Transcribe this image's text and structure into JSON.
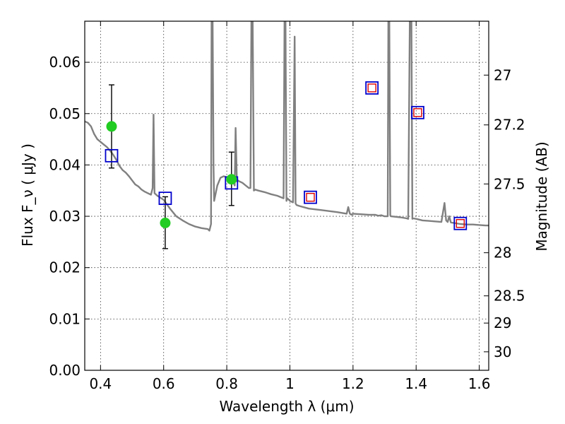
{
  "chart_data": {
    "type": "scatter",
    "xlabel": "Wavelength  λ (μm)",
    "ylabel": "Flux  F_ν  ( μJy )",
    "y2label": "Magnitude (AB)",
    "xlim": [
      0.35,
      1.63
    ],
    "ylim": [
      0.0,
      0.068
    ],
    "grid": true,
    "x_ticks": [
      0.4,
      0.6,
      0.8,
      1.0,
      1.2,
      1.4,
      1.6
    ],
    "x_tick_labels": [
      "0.4",
      "0.6",
      "0.8",
      "1",
      "1.2",
      "1.4",
      "1.6"
    ],
    "y_ticks": [
      0.0,
      0.01,
      0.02,
      0.03,
      0.04,
      0.05,
      0.06
    ],
    "y_tick_labels": [
      "0.00",
      "0.01",
      "0.02",
      "0.03",
      "0.04",
      "0.05",
      "0.06"
    ],
    "y2_ticks": [
      {
        "label": "27",
        "flux": 0.0575
      },
      {
        "label": "27.2",
        "flux": 0.0478
      },
      {
        "label": "27.5",
        "flux": 0.0363
      },
      {
        "label": "28",
        "flux": 0.0229
      },
      {
        "label": "28.5",
        "flux": 0.0145
      },
      {
        "label": "29",
        "flux": 0.0092
      },
      {
        "label": "30",
        "flux": 0.0036
      }
    ],
    "series": [
      {
        "kind": "model_spectrum",
        "color": "#808080",
        "x": [
          0.35,
          0.36,
          0.37,
          0.38,
          0.39,
          0.4,
          0.41,
          0.42,
          0.43,
          0.44,
          0.45,
          0.46,
          0.47,
          0.48,
          0.49,
          0.5,
          0.51,
          0.52,
          0.53,
          0.54,
          0.55,
          0.56,
          0.565,
          0.568,
          0.571,
          0.58,
          0.59,
          0.6,
          0.62,
          0.64,
          0.66,
          0.68,
          0.7,
          0.72,
          0.74,
          0.745,
          0.75,
          0.752,
          0.755,
          0.758,
          0.76,
          0.77,
          0.78,
          0.79,
          0.8,
          0.81,
          0.82,
          0.825,
          0.828,
          0.832,
          0.835,
          0.84,
          0.85,
          0.86,
          0.87,
          0.875,
          0.878,
          0.882,
          0.886,
          0.89,
          0.9,
          0.92,
          0.94,
          0.96,
          0.98,
          0.983,
          0.986,
          0.989,
          0.992,
          1.0,
          1.01,
          1.015,
          1.018,
          1.021,
          1.03,
          1.06,
          1.1,
          1.15,
          1.18,
          1.185,
          1.19,
          1.195,
          1.2,
          1.25,
          1.27,
          1.28,
          1.29,
          1.3,
          1.31,
          1.312,
          1.315,
          1.318,
          1.32,
          1.35,
          1.37,
          1.375,
          1.38,
          1.385,
          1.388,
          1.39,
          1.4,
          1.42,
          1.44,
          1.46,
          1.48,
          1.49,
          1.495,
          1.5,
          1.505,
          1.51,
          1.54,
          1.56,
          1.58,
          1.6,
          1.62,
          1.63
        ],
        "y": [
          0.0485,
          0.0482,
          0.0475,
          0.046,
          0.045,
          0.0445,
          0.044,
          0.0435,
          0.0428,
          0.042,
          0.041,
          0.0398,
          0.039,
          0.0385,
          0.0378,
          0.037,
          0.0362,
          0.0358,
          0.0352,
          0.0348,
          0.0345,
          0.0342,
          0.0355,
          0.0498,
          0.0345,
          0.034,
          0.0336,
          0.0332,
          0.0315,
          0.03,
          0.0292,
          0.0285,
          0.028,
          0.0277,
          0.0275,
          0.0272,
          0.0285,
          0.069,
          0.069,
          0.04,
          0.033,
          0.036,
          0.0375,
          0.0378,
          0.0376,
          0.0375,
          0.037,
          0.036,
          0.0472,
          0.0368,
          0.037,
          0.0368,
          0.0365,
          0.036,
          0.0355,
          0.0355,
          0.069,
          0.069,
          0.035,
          0.0352,
          0.035,
          0.0347,
          0.0343,
          0.034,
          0.0335,
          0.069,
          0.069,
          0.033,
          0.0335,
          0.033,
          0.0327,
          0.065,
          0.0325,
          0.0322,
          0.032,
          0.0315,
          0.0312,
          0.0308,
          0.0305,
          0.0318,
          0.0305,
          0.0303,
          0.0305,
          0.0303,
          0.0303,
          0.0301,
          0.0302,
          0.03,
          0.03,
          0.069,
          0.069,
          0.0302,
          0.03,
          0.0298,
          0.0296,
          0.0295,
          0.069,
          0.069,
          0.0295,
          0.0296,
          0.0295,
          0.0292,
          0.0291,
          0.029,
          0.0289,
          0.0326,
          0.0292,
          0.0289,
          0.03,
          0.0288,
          0.0285,
          0.0284,
          0.0284,
          0.0283,
          0.0282,
          0.0282
        ]
      },
      {
        "kind": "model_photometry",
        "marker": "square",
        "edge": "#0000cc",
        "x": [
          0.435,
          0.605,
          0.815,
          1.065,
          1.26,
          1.405,
          1.54
        ],
        "y": [
          0.0418,
          0.0335,
          0.0365,
          0.0337,
          0.055,
          0.0502,
          0.0286
        ]
      },
      {
        "kind": "observed_photometry",
        "marker": "square",
        "edge": "#dd0000",
        "x": [
          1.065,
          1.26,
          1.405,
          1.54
        ],
        "y": [
          0.0337,
          0.055,
          0.0502,
          0.0286
        ]
      },
      {
        "kind": "observed_detections",
        "marker": "circle",
        "color": "#22cc22",
        "x": [
          0.435,
          0.605,
          0.815
        ],
        "y": [
          0.0475,
          0.0287,
          0.0372
        ],
        "err_low": [
          0.0394,
          0.0237,
          0.0321
        ],
        "err_high": [
          0.0556,
          0.0338,
          0.0425
        ]
      }
    ]
  }
}
